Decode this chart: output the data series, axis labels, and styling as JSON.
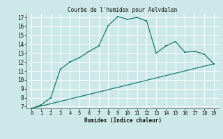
{
  "title": "Courbe de l'humidex pour Aelvdalen",
  "xlabel": "Humidex (Indice chaleur)",
  "xlim_min": -0.5,
  "xlim_max": 19.5,
  "ylim_min": 6.8,
  "ylim_max": 17.4,
  "yticks": [
    7,
    8,
    9,
    10,
    11,
    12,
    13,
    14,
    15,
    16,
    17
  ],
  "xticks": [
    0,
    1,
    2,
    3,
    4,
    5,
    6,
    7,
    8,
    9,
    10,
    11,
    12,
    13,
    14,
    15,
    16,
    17,
    18,
    19
  ],
  "bg_color": "#cde8e8",
  "grid_color": "#ffffff",
  "line_color": "#1a7a6e",
  "line1_x": [
    0,
    1,
    2,
    3,
    4,
    5,
    6,
    7,
    8,
    9,
    10,
    11,
    12,
    13,
    14,
    15,
    16,
    17,
    18,
    19
  ],
  "line1_y": [
    6.8,
    7.2,
    8.0,
    11.2,
    12.0,
    12.5,
    13.2,
    13.8,
    16.1,
    17.1,
    16.8,
    17.0,
    16.6,
    13.0,
    13.8,
    14.3,
    13.1,
    13.2,
    12.9,
    11.8
  ],
  "line2_x": [
    0,
    19
  ],
  "line2_y": [
    6.8,
    11.8
  ]
}
